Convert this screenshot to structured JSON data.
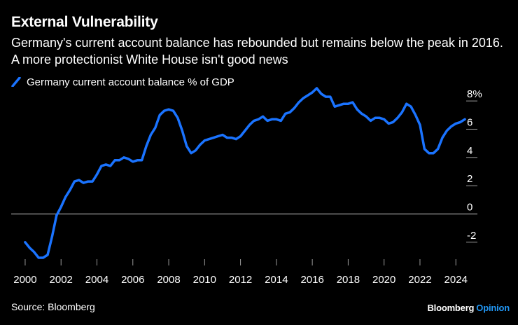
{
  "header": {
    "title": "External Vulnerability",
    "subtitle": "Germany's current account balance has rebounded but remains below the peak in 2016. A more protectionist White House isn't good news"
  },
  "footer": {
    "source": "Source: Bloomberg",
    "brand_name": "Bloomberg",
    "brand_section": "Opinion"
  },
  "colors": {
    "series": "#1a73ff",
    "background": "#000000",
    "brand_accent": "#2196f3"
  },
  "chart_data": {
    "type": "line",
    "title": "External Vulnerability",
    "xlabel": "",
    "ylabel": "",
    "xlim": [
      1999.3,
      2025.2
    ],
    "ylim": [
      -3.3,
      8.8
    ],
    "x_ticks": [
      2000,
      2002,
      2004,
      2006,
      2008,
      2010,
      2012,
      2014,
      2016,
      2018,
      2020,
      2022,
      2024
    ],
    "x_tick_labels": [
      "2000",
      "2002",
      "2004",
      "2006",
      "2008",
      "2010",
      "2012",
      "2014",
      "2016",
      "2018",
      "2020",
      "2022",
      "2024"
    ],
    "y_ticks": [
      8,
      6,
      4,
      2,
      0,
      -2
    ],
    "y_tick_labels": [
      "8%",
      "6",
      "4",
      "2",
      "0",
      "-2"
    ],
    "legend_position": "top-left",
    "series": [
      {
        "name": "Germany current account balance % of GDP",
        "x": [
          2000.0,
          2000.25,
          2000.5,
          2000.75,
          2001.0,
          2001.25,
          2001.5,
          2001.75,
          2002.0,
          2002.25,
          2002.5,
          2002.75,
          2003.0,
          2003.25,
          2003.5,
          2003.75,
          2004.0,
          2004.25,
          2004.5,
          2004.75,
          2005.0,
          2005.25,
          2005.5,
          2005.75,
          2006.0,
          2006.25,
          2006.5,
          2006.75,
          2007.0,
          2007.25,
          2007.5,
          2007.75,
          2008.0,
          2008.25,
          2008.5,
          2008.75,
          2009.0,
          2009.25,
          2009.5,
          2009.75,
          2010.0,
          2010.25,
          2010.5,
          2010.75,
          2011.0,
          2011.25,
          2011.5,
          2011.75,
          2012.0,
          2012.25,
          2012.5,
          2012.75,
          2013.0,
          2013.25,
          2013.5,
          2013.75,
          2014.0,
          2014.25,
          2014.5,
          2014.75,
          2015.0,
          2015.25,
          2015.5,
          2015.75,
          2016.0,
          2016.25,
          2016.5,
          2016.75,
          2017.0,
          2017.25,
          2017.5,
          2017.75,
          2018.0,
          2018.25,
          2018.5,
          2018.75,
          2019.0,
          2019.25,
          2019.5,
          2019.75,
          2020.0,
          2020.25,
          2020.5,
          2020.75,
          2021.0,
          2021.25,
          2021.5,
          2021.75,
          2022.0,
          2022.25,
          2022.5,
          2022.75,
          2023.0,
          2023.25,
          2023.5,
          2023.75,
          2024.0,
          2024.25,
          2024.5
        ],
        "values": [
          -2.0,
          -2.4,
          -2.7,
          -3.1,
          -3.1,
          -2.9,
          -1.6,
          -0.1,
          0.5,
          1.2,
          1.7,
          2.3,
          2.4,
          2.2,
          2.3,
          2.3,
          2.8,
          3.4,
          3.5,
          3.4,
          3.8,
          3.8,
          4.0,
          3.9,
          3.7,
          3.8,
          3.8,
          4.8,
          5.6,
          6.1,
          7.0,
          7.3,
          7.4,
          7.3,
          6.8,
          5.9,
          4.8,
          4.3,
          4.5,
          4.9,
          5.2,
          5.3,
          5.4,
          5.5,
          5.6,
          5.4,
          5.4,
          5.3,
          5.5,
          5.9,
          6.3,
          6.6,
          6.7,
          6.9,
          6.6,
          6.7,
          6.7,
          6.6,
          7.1,
          7.2,
          7.5,
          7.9,
          8.2,
          8.4,
          8.6,
          8.9,
          8.5,
          8.3,
          8.3,
          7.6,
          7.7,
          7.8,
          7.8,
          7.9,
          7.4,
          7.1,
          6.9,
          6.6,
          6.8,
          6.8,
          6.7,
          6.4,
          6.5,
          6.8,
          7.2,
          7.8,
          7.6,
          7.0,
          6.3,
          4.6,
          4.3,
          4.3,
          4.6,
          5.4,
          5.9,
          6.2,
          6.4,
          6.5,
          6.7
        ]
      }
    ]
  }
}
